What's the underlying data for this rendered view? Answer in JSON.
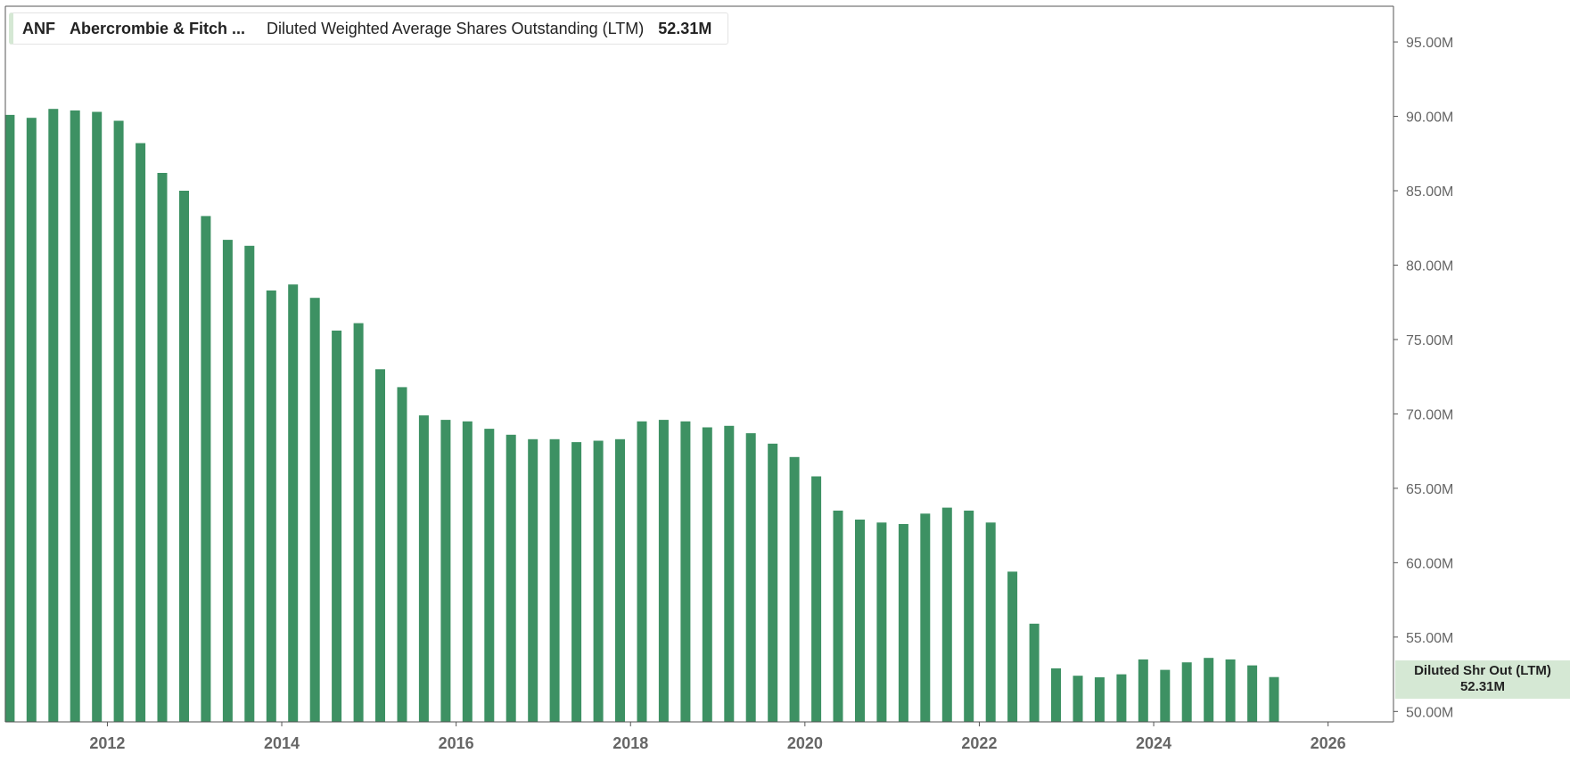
{
  "legend": {
    "ticker": "ANF",
    "company": "Abercrombie & Fitch ...",
    "metric": "Diluted Weighted Average Shares Outstanding (LTM)",
    "value": "52.31M"
  },
  "badge": {
    "label": "Diluted Shr Out (LTM)",
    "value": "52.31M"
  },
  "colors": {
    "bar": "#3d9163",
    "badge_bg": "#d5e8d4",
    "axis": "#555555"
  },
  "chart_data": {
    "type": "bar",
    "ylim": [
      49.3,
      97.4
    ],
    "xlim": [
      2010.83,
      2026.75
    ],
    "y_ticks": [
      "95.00M",
      "90.00M",
      "85.00M",
      "80.00M",
      "75.00M",
      "70.00M",
      "65.00M",
      "60.00M",
      "55.00M",
      "50.00M"
    ],
    "y_tick_values": [
      95,
      90,
      85,
      80,
      75,
      70,
      65,
      60,
      55,
      50
    ],
    "x_ticks": [
      "2012",
      "2014",
      "2016",
      "2018",
      "2020",
      "2022",
      "2024",
      "2026"
    ],
    "x_tick_values": [
      2012,
      2014,
      2016,
      2018,
      2020,
      2022,
      2024,
      2026
    ],
    "unit": "M",
    "series": [
      {
        "x": [
          2010.88,
          2011.13,
          2011.38,
          2011.63,
          2011.88,
          2012.13,
          2012.38,
          2012.63,
          2012.88,
          2013.13,
          2013.38,
          2013.63,
          2013.88,
          2014.13,
          2014.38,
          2014.63,
          2014.88,
          2015.13,
          2015.38,
          2015.63,
          2015.88,
          2016.13,
          2016.38,
          2016.63,
          2016.88,
          2017.13,
          2017.38,
          2017.63,
          2017.88,
          2018.13,
          2018.38,
          2018.63,
          2018.88,
          2019.13,
          2019.38,
          2019.63,
          2019.88,
          2020.13,
          2020.38,
          2020.63,
          2020.88,
          2021.13,
          2021.38,
          2021.63,
          2021.88,
          2022.13,
          2022.38,
          2022.63,
          2022.88,
          2023.13,
          2023.38,
          2023.63,
          2023.88,
          2024.13,
          2024.38,
          2024.63,
          2024.88,
          2025.13,
          2025.38
        ],
        "values": [
          90.1,
          89.9,
          90.5,
          90.4,
          90.3,
          89.7,
          88.2,
          86.2,
          85.0,
          83.3,
          81.7,
          81.3,
          78.3,
          78.7,
          77.8,
          75.6,
          76.1,
          73.0,
          71.8,
          69.9,
          69.6,
          69.5,
          69.0,
          68.6,
          68.3,
          68.3,
          68.1,
          68.2,
          68.3,
          69.5,
          69.6,
          69.5,
          69.1,
          69.2,
          68.7,
          68.0,
          67.1,
          65.8,
          63.5,
          62.9,
          62.7,
          62.6,
          63.3,
          63.7,
          63.5,
          62.7,
          59.4,
          55.9,
          52.9,
          52.4,
          52.3,
          52.5,
          53.5,
          52.8,
          53.3,
          53.6,
          53.5,
          53.1,
          52.31
        ]
      }
    ]
  }
}
